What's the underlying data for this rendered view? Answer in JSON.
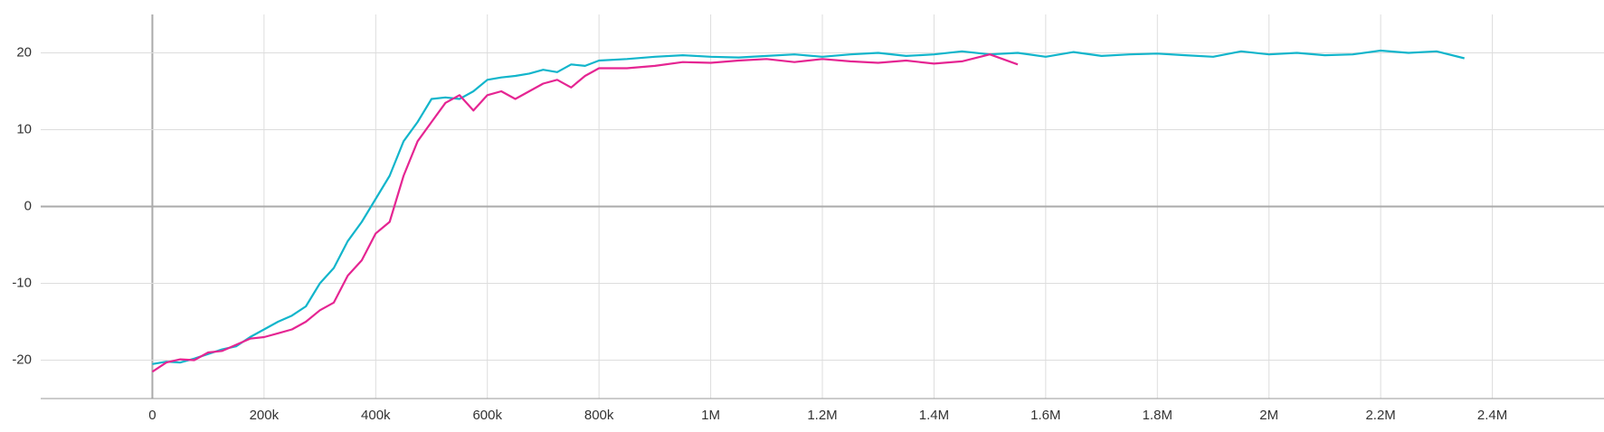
{
  "chart_data": {
    "type": "line",
    "x": [
      0,
      25000,
      50000,
      75000,
      100000,
      125000,
      150000,
      175000,
      200000,
      225000,
      250000,
      275000,
      300000,
      325000,
      350000,
      375000,
      400000,
      425000,
      450000,
      475000,
      500000,
      525000,
      550000,
      575000,
      600000,
      625000,
      650000,
      675000,
      700000,
      725000,
      750000,
      775000,
      800000,
      850000,
      900000,
      950000,
      1000000,
      1050000,
      1100000,
      1150000,
      1200000,
      1250000,
      1300000,
      1350000,
      1400000,
      1450000,
      1500000,
      1550000,
      1600000,
      1650000,
      1700000,
      1750000,
      1800000,
      1850000,
      1900000,
      1950000,
      2000000,
      2050000,
      2100000,
      2150000,
      2200000,
      2250000,
      2300000,
      2350000
    ],
    "series": [
      {
        "color": "#12b5cb",
        "values": [
          -20.5,
          -20.2,
          -20.3,
          -19.8,
          -19.2,
          -18.6,
          -18.2,
          -17,
          -16,
          -15,
          -14.2,
          -13,
          -10,
          -8,
          -4.5,
          -2,
          1,
          4,
          8.5,
          11,
          14,
          14.2,
          14,
          15,
          16.5,
          16.8,
          17,
          17.3,
          17.8,
          17.5,
          18.5,
          18.3,
          19,
          19.2,
          19.5,
          19.7,
          19.5,
          19.4,
          19.6,
          19.8,
          19.5,
          19.8,
          20,
          19.6,
          19.8,
          20.2,
          19.8,
          20,
          19.5,
          20.1,
          19.6,
          19.8,
          19.9,
          19.7,
          19.5,
          20.2,
          19.8,
          20,
          19.7,
          19.8,
          20.3,
          20,
          20.2,
          19.3
        ]
      },
      {
        "color": "#e52592",
        "values": [
          -21.5,
          -20.3,
          -19.9,
          -20,
          -19,
          -18.8,
          -18,
          -17.2,
          -17,
          -16.5,
          -16,
          -15,
          -13.5,
          -12.5,
          -9,
          -7,
          -3.5,
          -2,
          4,
          8.5,
          11,
          13.5,
          14.5,
          12.5,
          14.5,
          15,
          14,
          15,
          16,
          16.5,
          15.5,
          17,
          18,
          18,
          18.3,
          18.8,
          18.7,
          19,
          19.2,
          18.8,
          19.2,
          18.9,
          18.7,
          19,
          18.6,
          18.9,
          19.8,
          18.5,
          null,
          null,
          null,
          null,
          null,
          null,
          null,
          null,
          null,
          null,
          null,
          null,
          null,
          null,
          null,
          null
        ]
      }
    ],
    "xlim": [
      -200000,
      2600000
    ],
    "ylim": [
      -25,
      25
    ],
    "xticks": [
      0,
      {
        "value": 200000,
        "label": "200k"
      },
      {
        "value": 400000,
        "label": "400k"
      },
      {
        "value": 600000,
        "label": "600k"
      },
      {
        "value": 800000,
        "label": "800k"
      },
      {
        "value": 1000000,
        "label": "1M"
      },
      {
        "value": 1200000,
        "label": "1.2M"
      },
      {
        "value": 1400000,
        "label": "1.4M"
      },
      {
        "value": 1600000,
        "label": "1.6M"
      },
      {
        "value": 1800000,
        "label": "1.8M"
      },
      {
        "value": 2000000,
        "label": "2M"
      },
      {
        "value": 2200000,
        "label": "2.2M"
      },
      {
        "value": 2400000,
        "label": "2.4M"
      }
    ],
    "yticks": [
      -20,
      -10,
      0,
      10,
      20
    ],
    "grid": true
  }
}
